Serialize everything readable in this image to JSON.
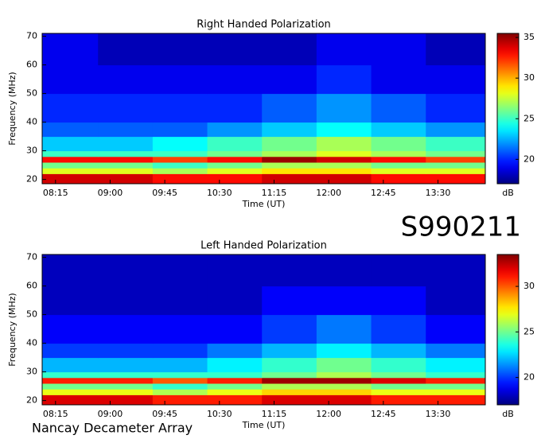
{
  "title": "S990211",
  "footer": "Nancay Decameter Array",
  "chart_data": [
    {
      "type": "heatmap",
      "title": "Right Handed Polarization",
      "x_label": "Time (UT)",
      "y_label": "Frequency (MHz)",
      "colorbar_label": "dB",
      "xlim": [
        484,
        849
      ],
      "ylim": [
        18.5,
        71
      ],
      "xticks": [
        {
          "value": 495,
          "label": "08:15"
        },
        {
          "value": 540,
          "label": "09:00"
        },
        {
          "value": 585,
          "label": "09:45"
        },
        {
          "value": 630,
          "label": "10:30"
        },
        {
          "value": 675,
          "label": "11:15"
        },
        {
          "value": 720,
          "label": "12:00"
        },
        {
          "value": 765,
          "label": "12:45"
        },
        {
          "value": 810,
          "label": "13:30"
        }
      ],
      "yticks": [
        20,
        30,
        40,
        50,
        60,
        70
      ],
      "x_bins": [
        484,
        530,
        575,
        620,
        665,
        710,
        755,
        800,
        849
      ],
      "y_bins": [
        18.5,
        22,
        24,
        26,
        28,
        30,
        35,
        40,
        50,
        60,
        71
      ],
      "zlim": [
        17,
        35.5
      ],
      "zticks": [
        20,
        25,
        30,
        35
      ],
      "colormap": "jet",
      "values": [
        [
          34,
          34,
          33,
          33,
          34,
          34,
          33,
          33
        ],
        [
          28,
          28,
          27,
          28,
          29,
          29,
          28,
          28
        ],
        [
          26,
          26,
          25,
          26,
          27,
          27,
          26,
          26
        ],
        [
          33,
          33,
          32,
          33,
          35,
          34,
          33,
          32
        ],
        [
          25,
          25,
          25,
          26,
          27,
          28,
          27,
          26
        ],
        [
          23,
          23,
          24,
          25,
          26,
          27,
          26,
          25
        ],
        [
          21,
          21,
          21,
          22,
          23,
          24,
          23,
          22
        ],
        [
          20,
          20,
          20,
          20,
          21,
          22,
          21,
          20
        ],
        [
          19,
          19,
          19,
          19,
          19,
          20,
          19,
          19
        ],
        [
          19,
          18,
          18,
          18,
          18,
          19,
          19,
          18
        ]
      ]
    },
    {
      "type": "heatmap",
      "title": "Left Handed Polarization",
      "x_label": "Time (UT)",
      "y_label": "Frequency (MHz)",
      "colorbar_label": "dB",
      "xlim": [
        484,
        849
      ],
      "ylim": [
        18.5,
        71
      ],
      "xticks": [
        {
          "value": 495,
          "label": "08:15"
        },
        {
          "value": 540,
          "label": "09:00"
        },
        {
          "value": 585,
          "label": "09:45"
        },
        {
          "value": 630,
          "label": "10:30"
        },
        {
          "value": 675,
          "label": "11:15"
        },
        {
          "value": 720,
          "label": "12:00"
        },
        {
          "value": 765,
          "label": "12:45"
        },
        {
          "value": 810,
          "label": "13:30"
        }
      ],
      "yticks": [
        20,
        30,
        40,
        50,
        60,
        70
      ],
      "x_bins": [
        484,
        530,
        575,
        620,
        665,
        710,
        755,
        800,
        849
      ],
      "y_bins": [
        18.5,
        22,
        24,
        26,
        28,
        30,
        35,
        40,
        50,
        60,
        71
      ],
      "zlim": [
        17,
        33.5
      ],
      "zticks": [
        20,
        25,
        30
      ],
      "colormap": "jet",
      "values": [
        [
          32,
          32,
          31,
          31,
          32,
          32,
          31,
          31
        ],
        [
          27,
          27,
          26,
          27,
          28,
          28,
          27,
          27
        ],
        [
          25,
          25,
          24,
          25,
          26,
          26,
          25,
          25
        ],
        [
          31,
          31,
          30,
          31,
          33,
          33,
          32,
          31
        ],
        [
          24,
          24,
          24,
          24,
          25,
          26,
          25,
          24
        ],
        [
          22,
          22,
          22,
          23,
          24,
          25,
          24,
          23
        ],
        [
          20,
          20,
          20,
          21,
          22,
          23,
          22,
          21
        ],
        [
          19,
          19,
          19,
          19,
          20,
          21,
          20,
          19
        ],
        [
          18,
          18,
          18,
          18,
          19,
          19,
          19,
          18
        ],
        [
          18,
          18,
          18,
          18,
          18,
          18,
          18,
          18
        ]
      ]
    }
  ]
}
